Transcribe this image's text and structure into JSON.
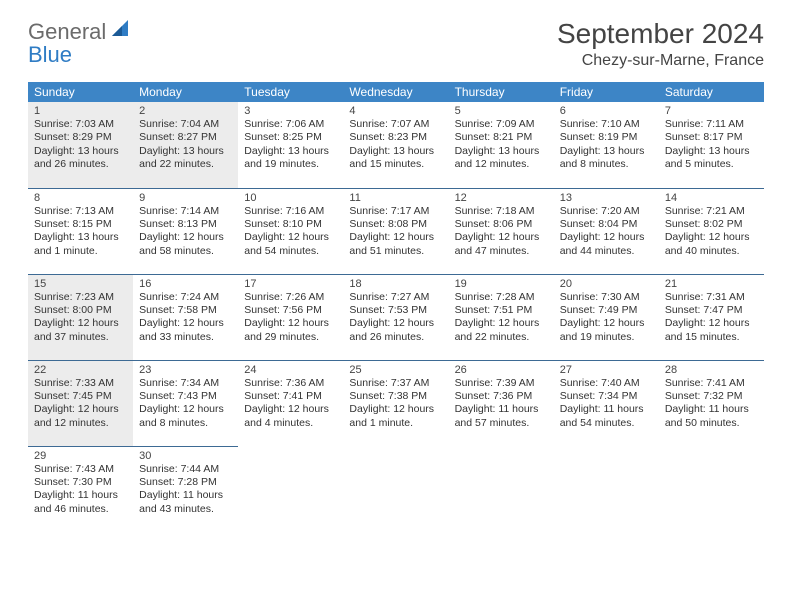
{
  "brand": {
    "part1": "General",
    "part2": "Blue"
  },
  "title": "September 2024",
  "location": "Chezy-sur-Marne, France",
  "colors": {
    "header_bg": "#3d85c6",
    "header_text": "#ffffff",
    "rule": "#3d6a94",
    "shaded": "#ececec",
    "text": "#333333",
    "brand_grey": "#6b6b6b",
    "brand_blue": "#2f7cc4"
  },
  "day_headers": [
    "Sunday",
    "Monday",
    "Tuesday",
    "Wednesday",
    "Thursday",
    "Friday",
    "Saturday"
  ],
  "weeks": [
    [
      {
        "n": "1",
        "shaded": true,
        "sunrise": "Sunrise: 7:03 AM",
        "sunset": "Sunset: 8:29 PM",
        "daylight": "Daylight: 13 hours and 26 minutes."
      },
      {
        "n": "2",
        "shaded": true,
        "sunrise": "Sunrise: 7:04 AM",
        "sunset": "Sunset: 8:27 PM",
        "daylight": "Daylight: 13 hours and 22 minutes."
      },
      {
        "n": "3",
        "shaded": false,
        "sunrise": "Sunrise: 7:06 AM",
        "sunset": "Sunset: 8:25 PM",
        "daylight": "Daylight: 13 hours and 19 minutes."
      },
      {
        "n": "4",
        "shaded": false,
        "sunrise": "Sunrise: 7:07 AM",
        "sunset": "Sunset: 8:23 PM",
        "daylight": "Daylight: 13 hours and 15 minutes."
      },
      {
        "n": "5",
        "shaded": false,
        "sunrise": "Sunrise: 7:09 AM",
        "sunset": "Sunset: 8:21 PM",
        "daylight": "Daylight: 13 hours and 12 minutes."
      },
      {
        "n": "6",
        "shaded": false,
        "sunrise": "Sunrise: 7:10 AM",
        "sunset": "Sunset: 8:19 PM",
        "daylight": "Daylight: 13 hours and 8 minutes."
      },
      {
        "n": "7",
        "shaded": false,
        "sunrise": "Sunrise: 7:11 AM",
        "sunset": "Sunset: 8:17 PM",
        "daylight": "Daylight: 13 hours and 5 minutes."
      }
    ],
    [
      {
        "n": "8",
        "shaded": false,
        "sunrise": "Sunrise: 7:13 AM",
        "sunset": "Sunset: 8:15 PM",
        "daylight": "Daylight: 13 hours and 1 minute."
      },
      {
        "n": "9",
        "shaded": false,
        "sunrise": "Sunrise: 7:14 AM",
        "sunset": "Sunset: 8:13 PM",
        "daylight": "Daylight: 12 hours and 58 minutes."
      },
      {
        "n": "10",
        "shaded": false,
        "sunrise": "Sunrise: 7:16 AM",
        "sunset": "Sunset: 8:10 PM",
        "daylight": "Daylight: 12 hours and 54 minutes."
      },
      {
        "n": "11",
        "shaded": false,
        "sunrise": "Sunrise: 7:17 AM",
        "sunset": "Sunset: 8:08 PM",
        "daylight": "Daylight: 12 hours and 51 minutes."
      },
      {
        "n": "12",
        "shaded": false,
        "sunrise": "Sunrise: 7:18 AM",
        "sunset": "Sunset: 8:06 PM",
        "daylight": "Daylight: 12 hours and 47 minutes."
      },
      {
        "n": "13",
        "shaded": false,
        "sunrise": "Sunrise: 7:20 AM",
        "sunset": "Sunset: 8:04 PM",
        "daylight": "Daylight: 12 hours and 44 minutes."
      },
      {
        "n": "14",
        "shaded": false,
        "sunrise": "Sunrise: 7:21 AM",
        "sunset": "Sunset: 8:02 PM",
        "daylight": "Daylight: 12 hours and 40 minutes."
      }
    ],
    [
      {
        "n": "15",
        "shaded": true,
        "sunrise": "Sunrise: 7:23 AM",
        "sunset": "Sunset: 8:00 PM",
        "daylight": "Daylight: 12 hours and 37 minutes."
      },
      {
        "n": "16",
        "shaded": false,
        "sunrise": "Sunrise: 7:24 AM",
        "sunset": "Sunset: 7:58 PM",
        "daylight": "Daylight: 12 hours and 33 minutes."
      },
      {
        "n": "17",
        "shaded": false,
        "sunrise": "Sunrise: 7:26 AM",
        "sunset": "Sunset: 7:56 PM",
        "daylight": "Daylight: 12 hours and 29 minutes."
      },
      {
        "n": "18",
        "shaded": false,
        "sunrise": "Sunrise: 7:27 AM",
        "sunset": "Sunset: 7:53 PM",
        "daylight": "Daylight: 12 hours and 26 minutes."
      },
      {
        "n": "19",
        "shaded": false,
        "sunrise": "Sunrise: 7:28 AM",
        "sunset": "Sunset: 7:51 PM",
        "daylight": "Daylight: 12 hours and 22 minutes."
      },
      {
        "n": "20",
        "shaded": false,
        "sunrise": "Sunrise: 7:30 AM",
        "sunset": "Sunset: 7:49 PM",
        "daylight": "Daylight: 12 hours and 19 minutes."
      },
      {
        "n": "21",
        "shaded": false,
        "sunrise": "Sunrise: 7:31 AM",
        "sunset": "Sunset: 7:47 PM",
        "daylight": "Daylight: 12 hours and 15 minutes."
      }
    ],
    [
      {
        "n": "22",
        "shaded": true,
        "sunrise": "Sunrise: 7:33 AM",
        "sunset": "Sunset: 7:45 PM",
        "daylight": "Daylight: 12 hours and 12 minutes."
      },
      {
        "n": "23",
        "shaded": false,
        "sunrise": "Sunrise: 7:34 AM",
        "sunset": "Sunset: 7:43 PM",
        "daylight": "Daylight: 12 hours and 8 minutes."
      },
      {
        "n": "24",
        "shaded": false,
        "sunrise": "Sunrise: 7:36 AM",
        "sunset": "Sunset: 7:41 PM",
        "daylight": "Daylight: 12 hours and 4 minutes."
      },
      {
        "n": "25",
        "shaded": false,
        "sunrise": "Sunrise: 7:37 AM",
        "sunset": "Sunset: 7:38 PM",
        "daylight": "Daylight: 12 hours and 1 minute."
      },
      {
        "n": "26",
        "shaded": false,
        "sunrise": "Sunrise: 7:39 AM",
        "sunset": "Sunset: 7:36 PM",
        "daylight": "Daylight: 11 hours and 57 minutes."
      },
      {
        "n": "27",
        "shaded": false,
        "sunrise": "Sunrise: 7:40 AM",
        "sunset": "Sunset: 7:34 PM",
        "daylight": "Daylight: 11 hours and 54 minutes."
      },
      {
        "n": "28",
        "shaded": false,
        "sunrise": "Sunrise: 7:41 AM",
        "sunset": "Sunset: 7:32 PM",
        "daylight": "Daylight: 11 hours and 50 minutes."
      }
    ],
    [
      {
        "n": "29",
        "shaded": false,
        "sunrise": "Sunrise: 7:43 AM",
        "sunset": "Sunset: 7:30 PM",
        "daylight": "Daylight: 11 hours and 46 minutes."
      },
      {
        "n": "30",
        "shaded": false,
        "sunrise": "Sunrise: 7:44 AM",
        "sunset": "Sunset: 7:28 PM",
        "daylight": "Daylight: 11 hours and 43 minutes."
      },
      null,
      null,
      null,
      null,
      null
    ]
  ]
}
